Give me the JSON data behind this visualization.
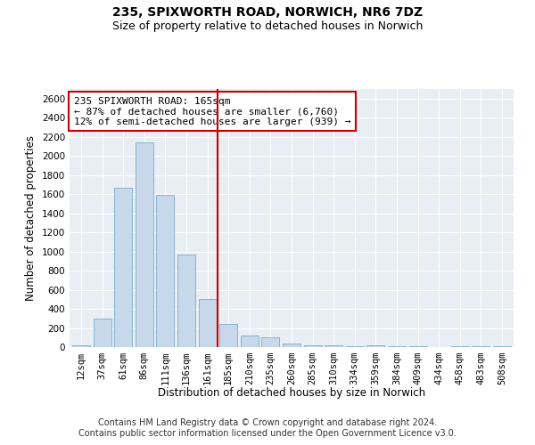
{
  "title_line1": "235, SPIXWORTH ROAD, NORWICH, NR6 7DZ",
  "title_line2": "Size of property relative to detached houses in Norwich",
  "xlabel": "Distribution of detached houses by size in Norwich",
  "ylabel": "Number of detached properties",
  "bar_color": "#c8d8eb",
  "bar_edge_color": "#7aaac8",
  "categories": [
    "12sqm",
    "37sqm",
    "61sqm",
    "86sqm",
    "111sqm",
    "136sqm",
    "161sqm",
    "185sqm",
    "210sqm",
    "235sqm",
    "260sqm",
    "285sqm",
    "310sqm",
    "334sqm",
    "359sqm",
    "384sqm",
    "409sqm",
    "434sqm",
    "458sqm",
    "483sqm",
    "508sqm"
  ],
  "values": [
    20,
    295,
    1670,
    2140,
    1595,
    970,
    500,
    245,
    120,
    100,
    35,
    20,
    15,
    5,
    20,
    10,
    5,
    0,
    5,
    5,
    5
  ],
  "ylim": [
    0,
    2700
  ],
  "yticks": [
    0,
    200,
    400,
    600,
    800,
    1000,
    1200,
    1400,
    1600,
    1800,
    2000,
    2200,
    2400,
    2600
  ],
  "vline_x": 6.5,
  "vline_color": "#cc0000",
  "annotation_text": "235 SPIXWORTH ROAD: 165sqm\n← 87% of detached houses are smaller (6,760)\n12% of semi-detached houses are larger (939) →",
  "annotation_box_color": "#ffffff",
  "annotation_box_edge": "#cc0000",
  "footer_line1": "Contains HM Land Registry data © Crown copyright and database right 2024.",
  "footer_line2": "Contains public sector information licensed under the Open Government Licence v3.0.",
  "plot_bg_color": "#e8eef4",
  "fig_bg_color": "#ffffff",
  "grid_color": "#ffffff",
  "title_fontsize": 10,
  "subtitle_fontsize": 9,
  "axis_label_fontsize": 8.5,
  "tick_fontsize": 7.5,
  "annotation_fontsize": 8,
  "footer_fontsize": 7
}
